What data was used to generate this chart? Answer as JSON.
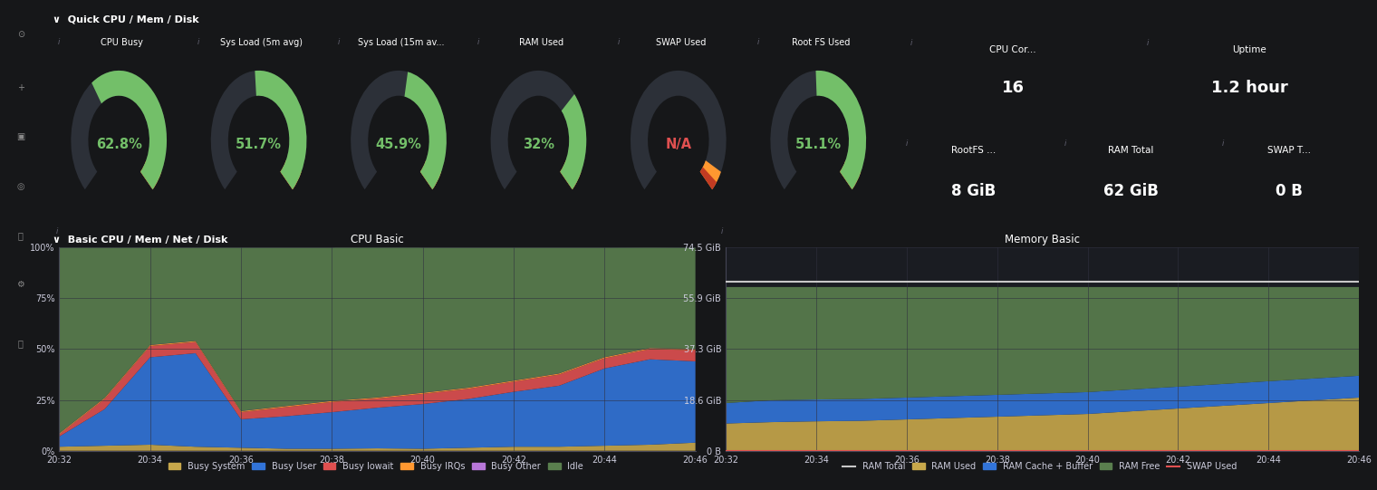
{
  "bg_color": "#161719",
  "panel_bg": "#1f2126",
  "sidebar_bg": "#111216",
  "text_color": "#ccccdc",
  "title_color": "#ffffff",
  "green_color": "#73bf69",
  "red_color": "#e05050",
  "orange_color": "#ff9830",
  "header_section1": "Quick CPU / Mem / Disk",
  "header_section2": "Basic CPU / Mem / Net / Disk",
  "gauges": [
    {
      "title": "CPU Busy",
      "value": 62.8,
      "color": "#73bf69"
    },
    {
      "title": "Sys Load (5m avg)",
      "value": 51.7,
      "color": "#73bf69"
    },
    {
      "title": "Sys Load (15m av...",
      "value": 45.9,
      "color": "#73bf69"
    },
    {
      "title": "RAM Used",
      "value": 32.0,
      "color": "#73bf69"
    },
    {
      "title": "SWAP Used",
      "value": null,
      "color": "#e05050"
    },
    {
      "title": "Root FS Used",
      "value": 51.1,
      "color": "#73bf69"
    }
  ],
  "stat_boxes_row0": [
    {
      "title": "CPU Cor...",
      "value": "16"
    },
    {
      "title": "Uptime",
      "value": "1.2 hour"
    }
  ],
  "stat_boxes_row1": [
    {
      "title": "RootFS ...",
      "value": "8 GiB"
    },
    {
      "title": "RAM Total",
      "value": "62 GiB"
    },
    {
      "title": "SWAP T...",
      "value": "0 B"
    }
  ],
  "cpu_time_labels": [
    "20:32",
    "20:34",
    "20:36",
    "20:38",
    "20:40",
    "20:42",
    "20:44",
    "20:46"
  ],
  "cpu_busy_system": [
    2.0,
    2.5,
    3.0,
    2.0,
    1.5,
    1.0,
    1.0,
    1.2,
    1.0,
    1.5,
    2.0,
    2.0,
    2.5,
    3.0,
    4.0
  ],
  "cpu_busy_user": [
    5.0,
    18.0,
    43.0,
    46.0,
    14.0,
    16.0,
    18.0,
    20.0,
    22.0,
    24.0,
    27.0,
    30.0,
    38.0,
    42.0,
    40.0
  ],
  "cpu_busy_iowait": [
    1.0,
    5.0,
    5.5,
    5.5,
    3.5,
    4.5,
    5.0,
    4.5,
    5.0,
    5.0,
    5.0,
    5.5,
    5.0,
    5.0,
    5.5
  ],
  "cpu_busy_irqs": [
    0.5,
    0.5,
    0.5,
    0.5,
    0.5,
    0.5,
    0.5,
    0.5,
    0.5,
    0.5,
    0.5,
    0.5,
    0.5,
    0.5,
    0.5
  ],
  "cpu_busy_other": [
    0.1,
    0.1,
    0.1,
    0.1,
    0.1,
    0.1,
    0.1,
    0.1,
    0.1,
    0.1,
    0.1,
    0.1,
    0.1,
    0.1,
    0.1
  ],
  "cpu_idle": [
    91.4,
    73.9,
    47.9,
    45.9,
    80.4,
    77.9,
    75.4,
    74.7,
    71.4,
    68.9,
    65.4,
    61.9,
    53.9,
    49.5,
    49.9
  ],
  "cpu_colors": {
    "Busy System": "#c8a84b",
    "Busy User": "#3274d9",
    "Busy Iowait": "#e05050",
    "Busy IRQs": "#ff9830",
    "Busy Other": "#b877d9",
    "Idle": "#5a7f4e"
  },
  "mem_time_labels": [
    "20:32",
    "20:34",
    "20:36",
    "20:38",
    "20:40",
    "20:42",
    "20:44",
    "20:46"
  ],
  "mem_ram_used": [
    10.0,
    10.5,
    10.8,
    11.0,
    11.5,
    12.0,
    12.5,
    13.0,
    13.5,
    14.5,
    15.5,
    16.5,
    17.5,
    18.5,
    19.5
  ],
  "mem_cache_buf": [
    7.5,
    8.0,
    8.0,
    8.0,
    8.0,
    8.0,
    8.0,
    8.0,
    8.0,
    8.0,
    8.0,
    8.0,
    8.0,
    8.0,
    8.0
  ],
  "mem_ram_free": [
    42.5,
    41.5,
    41.2,
    41.0,
    40.5,
    40.0,
    39.5,
    39.0,
    38.5,
    37.5,
    36.5,
    35.5,
    34.5,
    33.5,
    32.5
  ],
  "mem_ram_total": [
    62.0,
    62.0,
    62.0,
    62.0,
    62.0,
    62.0,
    62.0,
    62.0,
    62.0,
    62.0,
    62.0,
    62.0,
    62.0,
    62.0,
    62.0
  ],
  "mem_swap_used": [
    0.0,
    0.0,
    0.0,
    0.0,
    0.0,
    0.0,
    0.0,
    0.0,
    0.0,
    0.0,
    0.0,
    0.0,
    0.0,
    0.0,
    0.0
  ],
  "mem_colors": {
    "RAM Total": "#c8c8c8",
    "RAM Used": "#c8a84b",
    "RAM Cache + Buffer": "#3274d9",
    "RAM Free": "#5a7f4e",
    "SWAP Used": "#e05050"
  },
  "mem_yticks": [
    0,
    18.6,
    37.3,
    55.9,
    74.5
  ],
  "mem_ytick_labels": [
    "0 B",
    "18.6 GiB",
    "37.3 GiB",
    "55.9 GiB",
    "74.5 GiB"
  ],
  "gauge_arc_bg": "#2c3038",
  "gauge_arc_red": "#c23b22",
  "gauge_arc_orange": "#ff9830"
}
